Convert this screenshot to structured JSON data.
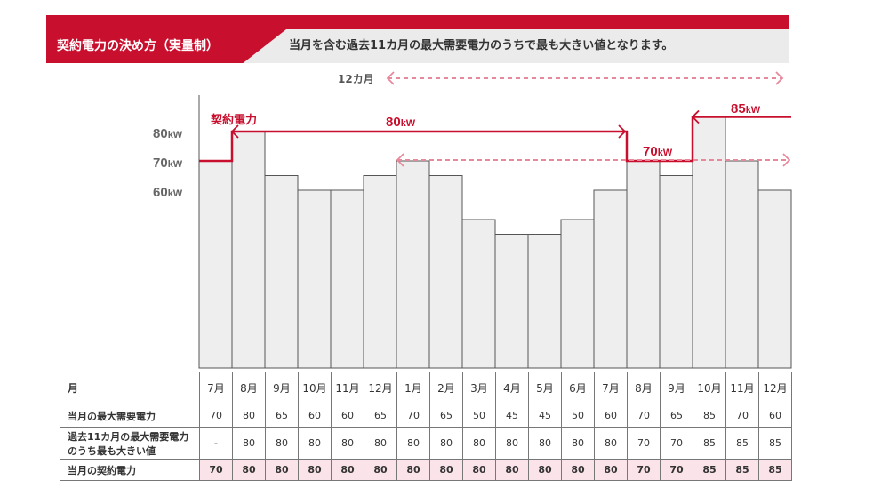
{
  "header": {
    "title": "契約電力の決め方（実量制）",
    "description": "当月を含む過去11カ月の最大需要電力のうちで最も大きい値となります。"
  },
  "annotations": {
    "twelve_months": "12カ月",
    "contract_label": "契約電力",
    "level_80": "80kW",
    "level_70": "70kW",
    "level_85": "85kW"
  },
  "colors": {
    "accent": "#c8102e",
    "dashed": "#e8899b",
    "bar_fill": "#eeeeee",
    "bar_stroke": "#555555",
    "contract_row_bg": "#fbe3ea",
    "banner_grey": "#ebebeb"
  },
  "chart_data": {
    "type": "bar",
    "title": "契約電力の決め方（実量制）",
    "categories": [
      "7月",
      "8月",
      "9月",
      "10月",
      "11月",
      "12月",
      "1月",
      "2月",
      "3月",
      "4月",
      "5月",
      "6月",
      "7月",
      "8月",
      "9月",
      "10月",
      "11月",
      "12月"
    ],
    "series": [
      {
        "name": "当月の最大需要電力",
        "values": [
          70,
          80,
          65,
          60,
          60,
          65,
          70,
          65,
          50,
          45,
          45,
          50,
          60,
          70,
          65,
          85,
          70,
          60
        ]
      },
      {
        "name": "当月の契約電力",
        "type": "step-line",
        "values": [
          70,
          80,
          80,
          80,
          80,
          80,
          80,
          80,
          80,
          80,
          80,
          80,
          80,
          70,
          70,
          85,
          85,
          85
        ]
      }
    ],
    "y_ticks": [
      {
        "value": 60,
        "label": "60",
        "unit": "kW"
      },
      {
        "value": 70,
        "label": "70",
        "unit": "kW"
      },
      {
        "value": 80,
        "label": "80",
        "unit": "kW"
      }
    ],
    "ylim": [
      0,
      90
    ]
  },
  "table": {
    "header_month": "月",
    "months": [
      "7月",
      "8月",
      "9月",
      "10月",
      "11月",
      "12月",
      "1月",
      "2月",
      "3月",
      "4月",
      "5月",
      "6月",
      "7月",
      "8月",
      "9月",
      "10月",
      "11月",
      "12月"
    ],
    "row_max_label": "当月の最大需要電力",
    "row_max": [
      "70",
      "80",
      "65",
      "60",
      "60",
      "65",
      "70",
      "65",
      "50",
      "45",
      "45",
      "50",
      "60",
      "70",
      "65",
      "85",
      "70",
      "60"
    ],
    "row_max_underline": [
      1,
      6,
      15
    ],
    "row_past_label_line1": "過去11カ月の最大需要電力",
    "row_past_label_line2": "のうち最も大きい値",
    "row_past": [
      "-",
      "80",
      "80",
      "80",
      "80",
      "80",
      "80",
      "80",
      "80",
      "80",
      "80",
      "80",
      "80",
      "70",
      "70",
      "85",
      "85",
      "85"
    ],
    "row_contract_label": "当月の契約電力",
    "row_contract": [
      "70",
      "80",
      "80",
      "80",
      "80",
      "80",
      "80",
      "80",
      "80",
      "80",
      "80",
      "80",
      "80",
      "70",
      "70",
      "85",
      "85",
      "85"
    ]
  }
}
